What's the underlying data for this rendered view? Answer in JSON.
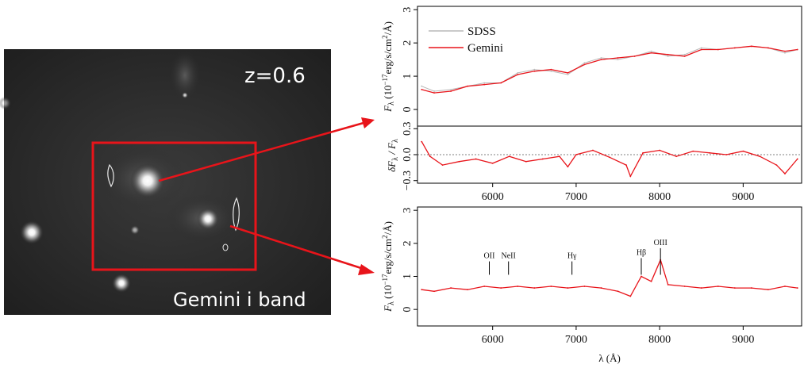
{
  "image_panel": {
    "redshift_label": "z=0.6",
    "band_label": "Gemini i band",
    "box_color": "#e8141a"
  },
  "chart_data": [
    {
      "type": "line",
      "panel": "top",
      "ylabel": "F_λ (10^-17 erg/s/cm^2/Å)",
      "ylabel_parts": {
        "main": "F",
        "sub": "λ",
        "open": " (10",
        "exp1": "−17",
        "mid": "erg/s/cm",
        "exp2": "2",
        "close": "/Å)"
      },
      "xlim": [
        5100,
        9700
      ],
      "ylim": [
        -0.5,
        3.1
      ],
      "yticks": [
        "0",
        "1",
        "2",
        "3"
      ],
      "legend": {
        "position": "top-left",
        "entries": [
          {
            "name": "SDSS",
            "color": "#b8b8b8"
          },
          {
            "name": "Gemini",
            "color": "#e8141a"
          }
        ]
      },
      "series": [
        {
          "name": "SDSS",
          "color": "#b8b8b8",
          "x": [
            5150,
            5300,
            5500,
            5700,
            5900,
            6100,
            6300,
            6500,
            6700,
            6900,
            7100,
            7300,
            7500,
            7700,
            7900,
            8100,
            8300,
            8500,
            8700,
            8900,
            9100,
            9300,
            9500,
            9650
          ],
          "y": [
            0.7,
            0.55,
            0.6,
            0.7,
            0.8,
            0.8,
            1.1,
            1.2,
            1.15,
            1.05,
            1.4,
            1.55,
            1.5,
            1.6,
            1.75,
            1.6,
            1.65,
            1.85,
            1.8,
            1.85,
            1.9,
            1.85,
            1.7,
            1.8
          ]
        },
        {
          "name": "Gemini",
          "color": "#e8141a",
          "x": [
            5150,
            5300,
            5500,
            5700,
            5900,
            6100,
            6300,
            6500,
            6700,
            6900,
            7100,
            7300,
            7500,
            7700,
            7900,
            8100,
            8300,
            8500,
            8700,
            8900,
            9100,
            9300,
            9500,
            9650
          ],
          "y": [
            0.6,
            0.5,
            0.55,
            0.7,
            0.75,
            0.8,
            1.05,
            1.15,
            1.2,
            1.1,
            1.35,
            1.5,
            1.55,
            1.6,
            1.7,
            1.65,
            1.6,
            1.8,
            1.8,
            1.85,
            1.9,
            1.85,
            1.75,
            1.8
          ]
        }
      ]
    },
    {
      "type": "line",
      "panel": "residual",
      "ylabel": "δF_λ / F_λ",
      "ylabel_parts": {
        "main": "δF",
        "sub": "λ",
        "slash": " / F",
        "sub2": "λ"
      },
      "xlim": [
        5100,
        9700
      ],
      "ylim": [
        -0.33,
        0.33
      ],
      "yticks": [
        "−0.3",
        "0.0",
        "0.3"
      ],
      "series": [
        {
          "name": "",
          "color": "#e8141a",
          "x": [
            5150,
            5250,
            5400,
            5600,
            5800,
            6000,
            6200,
            6400,
            6600,
            6800,
            6900,
            7000,
            7200,
            7400,
            7600,
            7650,
            7800,
            8000,
            8200,
            8400,
            8600,
            8800,
            9000,
            9200,
            9400,
            9500,
            9650
          ],
          "y": [
            0.15,
            -0.02,
            -0.12,
            -0.08,
            -0.05,
            -0.1,
            -0.02,
            -0.08,
            -0.05,
            -0.02,
            -0.14,
            0.0,
            0.05,
            -0.03,
            -0.12,
            -0.25,
            0.02,
            0.05,
            -0.02,
            0.04,
            0.02,
            0.0,
            0.04,
            -0.02,
            -0.12,
            -0.22,
            -0.05
          ]
        }
      ]
    },
    {
      "type": "line",
      "panel": "bottom",
      "ylabel": "F_λ (10^-17 erg/s/cm^2/Å)",
      "ylabel_parts": {
        "main": "F",
        "sub": "λ",
        "open": " (10",
        "exp1": "−17",
        "mid": "erg/s/cm",
        "exp2": "2",
        "close": "/Å)"
      },
      "xlabel": "λ (Å)",
      "xlim": [
        5100,
        9700
      ],
      "ylim": [
        -0.5,
        3.1
      ],
      "xticks": [
        "6000",
        "7000",
        "8000",
        "9000"
      ],
      "yticks": [
        "0",
        "1",
        "2",
        "3"
      ],
      "annotations": [
        {
          "label": "OII",
          "x": 5960
        },
        {
          "label": "NeII",
          "x": 6190
        },
        {
          "label": "Hγ",
          "x": 6950
        },
        {
          "label": "Hβ",
          "x": 7780
        },
        {
          "label": "OIII",
          "x": 8010
        }
      ],
      "series": [
        {
          "name": "",
          "color": "#e8141a",
          "x": [
            5150,
            5300,
            5500,
            5700,
            5900,
            6100,
            6300,
            6500,
            6700,
            6900,
            7100,
            7300,
            7500,
            7650,
            7780,
            7900,
            8010,
            8100,
            8300,
            8500,
            8700,
            8900,
            9100,
            9300,
            9500,
            9650
          ],
          "y": [
            0.6,
            0.55,
            0.65,
            0.6,
            0.7,
            0.65,
            0.7,
            0.65,
            0.7,
            0.65,
            0.7,
            0.65,
            0.55,
            0.4,
            1.0,
            0.85,
            1.5,
            0.75,
            0.7,
            0.65,
            0.7,
            0.65,
            0.65,
            0.6,
            0.7,
            0.65
          ]
        }
      ]
    }
  ]
}
